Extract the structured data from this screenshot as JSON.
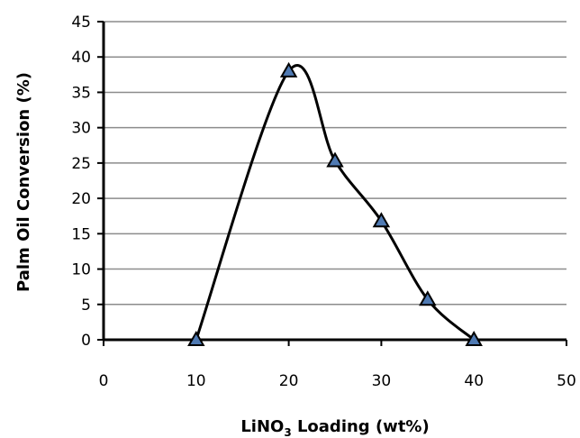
{
  "chart_data": {
    "type": "line",
    "x": [
      10,
      20,
      25,
      30,
      35,
      40
    ],
    "series": [
      {
        "values": [
          0,
          38,
          25.3,
          16.8,
          5.7,
          0
        ]
      }
    ],
    "xlim": [
      0,
      50
    ],
    "ylim": [
      0,
      45
    ],
    "xticks": [
      "0",
      "10",
      "20",
      "30",
      "40",
      "50"
    ],
    "yticks": [
      "0",
      "5",
      "10",
      "15",
      "20",
      "25",
      "30",
      "35",
      "40",
      "45"
    ],
    "xlabel_main": "LiNO",
    "xlabel_sub": "3",
    "xlabel_rest": " Loading (wt%)",
    "ylabel": "Palm Oil Conversion (%)",
    "grid": "horizontal",
    "line_style": "smooth",
    "marker": "triangle",
    "colors": {
      "line": "#000000",
      "marker_fill": "#4f7ab3",
      "marker_edge": "#000000",
      "grid": "#8c8c8c"
    }
  }
}
